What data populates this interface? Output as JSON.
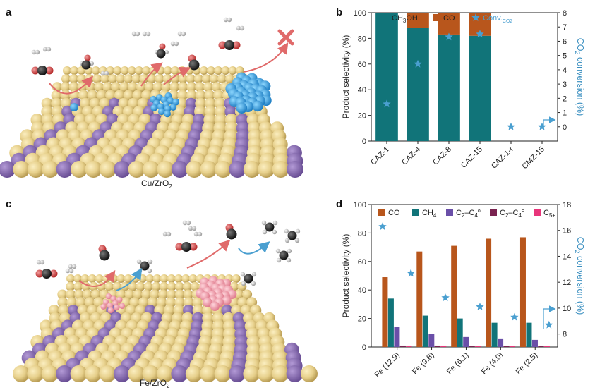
{
  "panels": {
    "a": {
      "label": "a",
      "caption": "Cu/ZrO",
      "caption_sub": "2"
    },
    "b": {
      "label": "b"
    },
    "c": {
      "label": "c",
      "caption": "Fe/ZrO",
      "caption_sub": "2"
    },
    "d": {
      "label": "d"
    }
  },
  "chart_data": [
    {
      "id": "b",
      "type": "bar",
      "title": "",
      "categories": [
        "CAZ-1",
        "CAZ-4",
        "CAZ-8",
        "CAZ-15",
        "CAZ-1-r",
        "CMZ-15"
      ],
      "stacked": true,
      "series": [
        {
          "name": "CH3OH",
          "label": "CH",
          "label_sub": "3",
          "label_tail": "OH",
          "color": "#117479",
          "values": [
            100,
            88,
            83,
            82,
            0,
            0
          ]
        },
        {
          "name": "CO",
          "label": "CO",
          "color": "#b8561c",
          "values": [
            0,
            12,
            17,
            18,
            0,
            0
          ]
        }
      ],
      "secondary_series": {
        "name": "Conv.CO2",
        "label": "Conv.",
        "label_sub": "CO2",
        "color": "#4a9fd0",
        "marker": "star",
        "values": [
          1.6,
          4.4,
          6.3,
          6.5,
          0,
          0
        ]
      },
      "ylabel": "Product selectivity (%)",
      "ylim": [
        0,
        100
      ],
      "yticks": [
        "0",
        "20",
        "40",
        "60",
        "80",
        "100"
      ],
      "y2label_pre": "CO",
      "y2label_sub": "2",
      "y2label_post": " conversion (%)",
      "y2lim": [
        -1,
        8
      ],
      "y2ticks": [
        "0",
        "1",
        "2",
        "3",
        "4",
        "5",
        "6",
        "7",
        "8"
      ]
    },
    {
      "id": "d",
      "type": "bar",
      "title": "",
      "categories": [
        "Fe (12.9)",
        "Fe (9.8)",
        "Fe (6.1)",
        "Fe (4.0)",
        "Fe (2.5)"
      ],
      "stacked": false,
      "series": [
        {
          "name": "CO",
          "label": "CO",
          "color": "#b8561c",
          "values": [
            49,
            67,
            71,
            76,
            77
          ]
        },
        {
          "name": "CH4",
          "label": "CH",
          "label_sub": "4",
          "color": "#117479",
          "values": [
            34,
            22,
            20,
            17,
            17
          ]
        },
        {
          "name": "C2-C4 paraffins",
          "label": "C",
          "label_sub": "2",
          "label_mid": "–C",
          "label_sub2": "4",
          "label_sup": "o",
          "color": "#6a4fa8",
          "values": [
            14,
            9,
            7,
            6,
            5
          ]
        },
        {
          "name": "C2-C4 olefins",
          "label": "C",
          "label_sub": "2",
          "label_mid": "–C",
          "label_sub2": "4",
          "label_sup": "=",
          "color": "#7a2350",
          "values": [
            1,
            1,
            0.5,
            0.5,
            0.5
          ]
        },
        {
          "name": "C5+",
          "label": "C",
          "label_sub": "5+",
          "color": "#e8357a",
          "values": [
            1,
            1,
            0.5,
            0.5,
            0.5
          ]
        }
      ],
      "secondary_series": {
        "name": "Conv.CO2",
        "color": "#4a9fd0",
        "marker": "star",
        "values": [
          16.3,
          12.7,
          10.8,
          10.1,
          9.3,
          8.7
        ]
      },
      "secondary_x_index": [
        0,
        0.7,
        1.7,
        2.7,
        3.7,
        4.7
      ],
      "ylabel": "Product selectivity (%)",
      "ylim": [
        0,
        100
      ],
      "yticks": [
        "0",
        "20",
        "40",
        "60",
        "80",
        "100"
      ],
      "y2label_pre": "CO",
      "y2label_sub": "2",
      "y2label_post": " conversion (%)",
      "y2lim": [
        7,
        18
      ],
      "y2ticks": [
        "8",
        "10",
        "12",
        "14",
        "16",
        "18"
      ]
    }
  ]
}
